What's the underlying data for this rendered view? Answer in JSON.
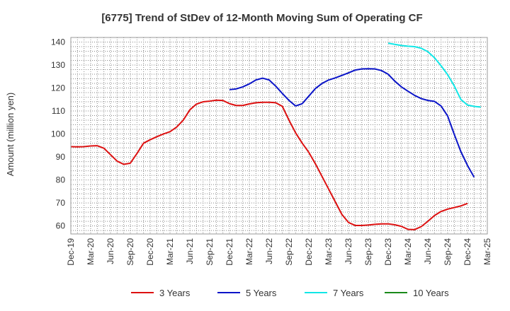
{
  "chart_data": {
    "type": "line",
    "title": "[6775]  Trend of StDev of 12-Month Moving Sum of Operating CF",
    "xlabel": "",
    "ylabel": "Amount (million yen)",
    "ylim": [
      56.5,
      142
    ],
    "yticks": [
      60,
      70,
      80,
      90,
      100,
      110,
      120,
      130,
      140
    ],
    "x_tick_labels": [
      "Dec-19",
      "Mar-20",
      "Jun-20",
      "Sep-20",
      "Dec-20",
      "Mar-21",
      "Jun-21",
      "Sep-21",
      "Dec-21",
      "Mar-22",
      "Jun-22",
      "Sep-22",
      "Dec-22",
      "Mar-23",
      "Jun-23",
      "Sep-23",
      "Dec-23",
      "Mar-24",
      "Jun-24",
      "Sep-24",
      "Dec-24",
      "Mar-25"
    ],
    "grid": true,
    "legend_position": "bottom",
    "series": [
      {
        "name": "3 Years",
        "color": "#dd1111",
        "start_index": 0,
        "values": [
          94.5,
          94.4,
          94.5,
          94.8,
          94.9,
          93.8,
          91.0,
          88.2,
          86.8,
          87.3,
          91.5,
          96.0,
          97.5,
          98.8,
          100.0,
          101.0,
          103.0,
          106.0,
          110.5,
          113.0,
          114.0,
          114.3,
          114.7,
          114.6,
          113.2,
          112.4,
          112.4,
          113.1,
          113.6,
          113.8,
          113.8,
          113.6,
          112.0,
          106.0,
          100.5,
          96.0,
          92.0,
          87.0,
          81.5,
          76.0,
          70.5,
          65.0,
          61.5,
          60.2,
          60.2,
          60.4,
          60.7,
          60.9,
          60.9,
          60.5,
          59.8,
          58.5,
          58.4,
          59.7,
          62.0,
          64.5,
          66.3,
          67.3,
          68.0,
          68.7,
          69.8
        ]
      },
      {
        "name": "5 Years",
        "color": "#0a14c8",
        "start_index": 24,
        "values": [
          119.3,
          119.6,
          120.5,
          121.8,
          123.5,
          124.3,
          123.5,
          120.8,
          117.6,
          114.6,
          112.2,
          113.2,
          116.5,
          119.8,
          122.0,
          123.5,
          124.4,
          125.5,
          126.6,
          127.8,
          128.3,
          128.4,
          128.3,
          127.6,
          126.0,
          123.0,
          120.5,
          118.6,
          116.8,
          115.4,
          114.6,
          114.2,
          112.2,
          107.8,
          99.8,
          92.3,
          86.3,
          81.2
        ]
      },
      {
        "name": "7 Years",
        "color": "#11e6e6",
        "start_index": 48,
        "values": [
          139.5,
          139.0,
          138.5,
          138.2,
          138.0,
          137.3,
          135.8,
          133.2,
          129.7,
          125.8,
          120.9,
          115.0,
          112.6,
          112.0,
          111.7
        ]
      },
      {
        "name": "10 Years",
        "color": "#1a8a1a",
        "start_index": 0,
        "values": []
      }
    ]
  }
}
